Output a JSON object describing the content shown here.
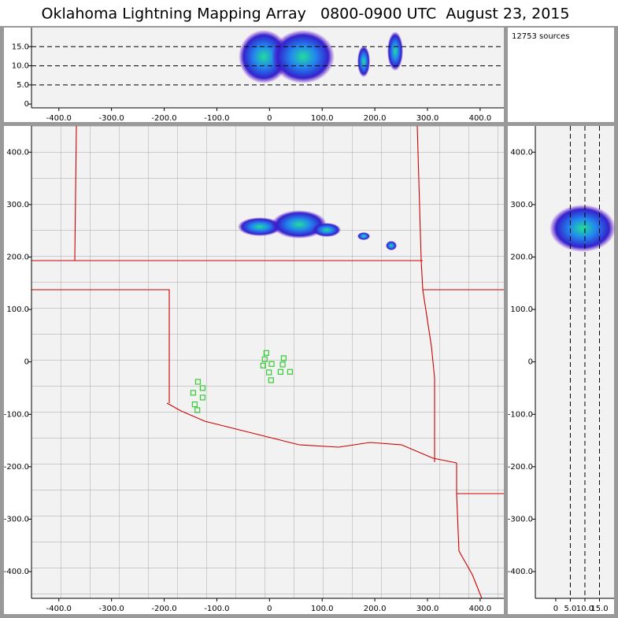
{
  "title": "Oklahoma Lightning Mapping Array   0800-0900 UTC  August 23, 2015",
  "source_count": "12753 sources",
  "chart_data": [
    {
      "type": "scatter",
      "xlim": [
        -452,
        445
      ],
      "ylim": [
        -1,
        20
      ],
      "xticks": [
        {
          "value": -400,
          "label": "-400.0"
        },
        {
          "value": -300,
          "label": "-300.0"
        },
        {
          "value": -200,
          "label": "-200.0"
        },
        {
          "value": -100,
          "label": "-100.0"
        },
        0,
        {
          "value": 100,
          "label": "100.0"
        },
        {
          "value": 200,
          "label": "200.0"
        },
        {
          "value": 300,
          "label": "300.0"
        },
        {
          "value": 400,
          "label": "400.0"
        }
      ],
      "yticks": [
        0,
        {
          "value": 5,
          "label": "5.0"
        },
        {
          "value": 10,
          "label": "10.0"
        },
        {
          "value": 15,
          "label": "15.0"
        }
      ],
      "grid": "y"
    },
    {
      "type": "map",
      "xlim": [
        -452,
        445
      ],
      "ylim": [
        -451,
        450
      ],
      "xticks": [
        {
          "value": -400,
          "label": "-400.0"
        },
        {
          "value": -300,
          "label": "-300.0"
        },
        {
          "value": -200,
          "label": "-200.0"
        },
        {
          "value": -100,
          "label": "-100.0"
        },
        0,
        {
          "value": 100,
          "label": "100.0"
        },
        {
          "value": 200,
          "label": "200.0"
        },
        {
          "value": 300,
          "label": "300.0"
        },
        {
          "value": 400,
          "label": "400.0"
        }
      ],
      "yticks": [
        {
          "value": 400,
          "label": "400.0"
        },
        {
          "value": 300,
          "label": "300.0"
        },
        {
          "value": 200,
          "label": "200.0"
        },
        {
          "value": 100,
          "label": "100.0"
        },
        0,
        {
          "value": -100,
          "label": "-100.0"
        },
        {
          "value": -200,
          "label": "-200.0"
        },
        {
          "value": -300,
          "label": "-300.0"
        },
        {
          "value": -400,
          "label": "-400.0"
        }
      ],
      "stations": {
        "color": "#33cc33",
        "x": [
          -6,
          -9,
          -12,
          4,
          27,
          25,
          21,
          -1,
          3,
          39,
          -136,
          -127,
          -145,
          -127,
          -142,
          -137
        ],
        "y": [
          17,
          5,
          -7,
          -4,
          7,
          -5,
          -19,
          -20,
          -35,
          -19,
          -38,
          -50,
          -59,
          -68,
          -81,
          -92
        ]
      }
    },
    {
      "type": "scatter",
      "xlim": [
        -7,
        20
      ],
      "ylim": [
        -451,
        450
      ],
      "xticks": [
        0,
        {
          "value": 5,
          "label": "5.0"
        },
        {
          "value": 10,
          "label": "10.0"
        },
        {
          "value": 15,
          "label": "15.0"
        }
      ],
      "yticks": [
        {
          "value": 400,
          "label": "400.0"
        },
        {
          "value": 300,
          "label": "300.0"
        },
        {
          "value": 200,
          "label": "200.0"
        },
        {
          "value": 100,
          "label": "100.0"
        },
        0,
        {
          "value": -100,
          "label": "-100.0"
        },
        {
          "value": -200,
          "label": "-200.0"
        },
        {
          "value": -300,
          "label": "-300.0"
        },
        {
          "value": -400,
          "label": "-400.0"
        }
      ],
      "grid": "x"
    }
  ]
}
